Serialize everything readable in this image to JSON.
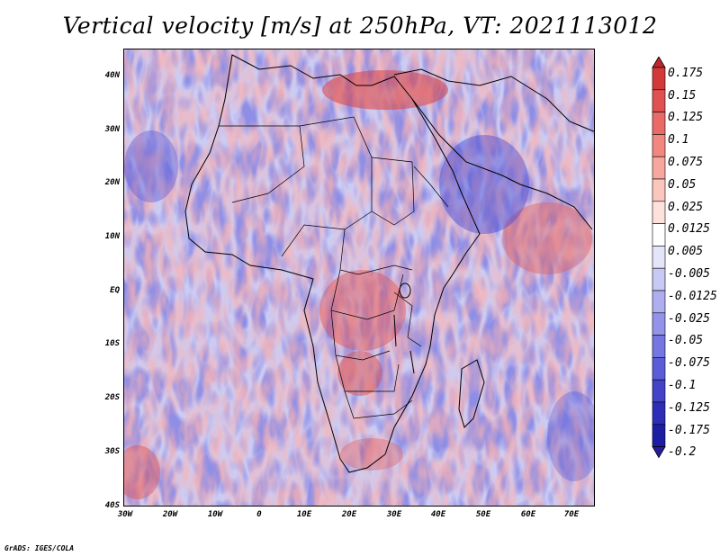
{
  "title": "Vertical velocity [m/s] at 250hPa, VT: 2021113012",
  "credit": "GrADS: IGES/COLA",
  "axes": {
    "lat_labels": [
      "40N",
      "30N",
      "20N",
      "10N",
      "EQ",
      "10S",
      "20S",
      "30S",
      "40S"
    ],
    "lon_labels": [
      "30W",
      "20W",
      "10W",
      "0",
      "10E",
      "20E",
      "30E",
      "40E",
      "50E",
      "60E",
      "70E"
    ]
  },
  "map": {
    "variable": "Vertical velocity",
    "units": "m/s",
    "level": "250hPa",
    "valid_time": "2021113012",
    "lat_range": [
      -40,
      45
    ],
    "lon_range": [
      -30,
      75
    ]
  },
  "colorbar": {
    "labels": [
      "0.175",
      "0.15",
      "0.125",
      "0.1",
      "0.075",
      "0.05",
      "0.025",
      "0.0125",
      "0.005",
      "-0.005",
      "-0.0125",
      "-0.025",
      "-0.05",
      "-0.075",
      "-0.1",
      "-0.125",
      "-0.175",
      "-0.2"
    ],
    "colors": [
      "#c0262c",
      "#d23a3a",
      "#e05252",
      "#ea6a66",
      "#f2877f",
      "#f7a79d",
      "#fbc6bd",
      "#fde2dc",
      "#ffffff",
      "#e4e4fb",
      "#c9c9f6",
      "#aeaef1",
      "#9393ea",
      "#7676e2",
      "#5c5cd8",
      "#4343c9",
      "#2d2db8",
      "#1d1da4",
      "#2a1a9c"
    ]
  }
}
